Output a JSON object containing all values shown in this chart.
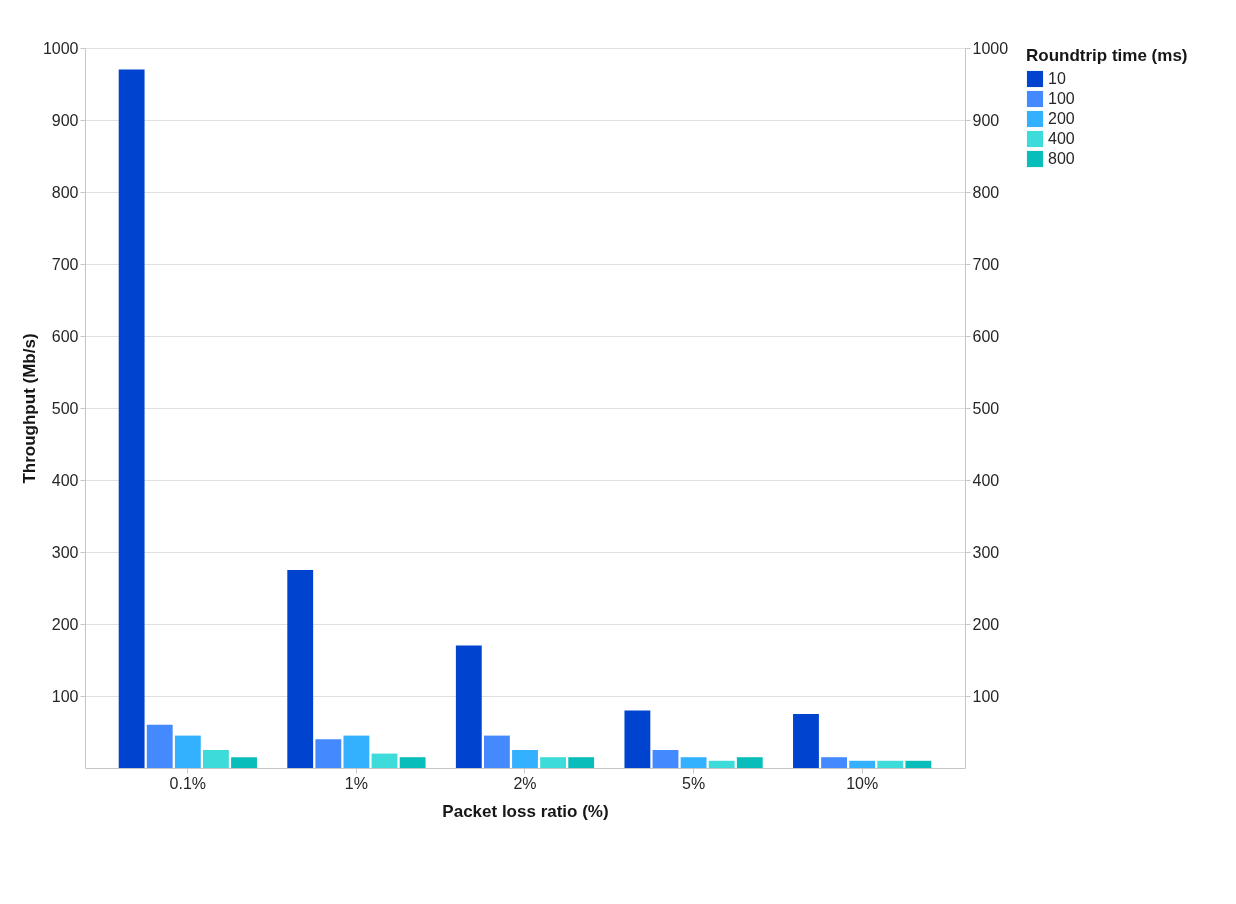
{
  "chart_data": {
    "type": "bar",
    "categories": [
      "0.1%",
      "1%",
      "2%",
      "5%",
      "10%"
    ],
    "xlabel": "Packet loss ratio (%)",
    "ylabel": "Throughput (Mb/s)",
    "legend_title": "Roundtrip time (ms)",
    "series": [
      {
        "name": "10",
        "color": "#0043ce",
        "values": [
          970,
          275,
          170,
          80,
          75
        ]
      },
      {
        "name": "100",
        "color": "#4589ff",
        "values": [
          60,
          40,
          45,
          25,
          15
        ]
      },
      {
        "name": "200",
        "color": "#33b1ff",
        "values": [
          45,
          45,
          25,
          15,
          10
        ]
      },
      {
        "name": "400",
        "color": "#3ddbd9",
        "values": [
          25,
          20,
          15,
          10,
          10
        ]
      },
      {
        "name": "800",
        "color": "#08bdba",
        "values": [
          15,
          15,
          15,
          15,
          10
        ]
      }
    ],
    "ylim": [
      0,
      1000
    ],
    "yticks": [
      100,
      200,
      300,
      400,
      500,
      600,
      700,
      800,
      900,
      1000
    ],
    "y2lim": [
      0,
      1000
    ],
    "y2ticks": [
      100,
      200,
      300,
      400,
      500,
      600,
      700,
      800,
      900,
      1000
    ],
    "grid": "y",
    "legend": "right"
  }
}
